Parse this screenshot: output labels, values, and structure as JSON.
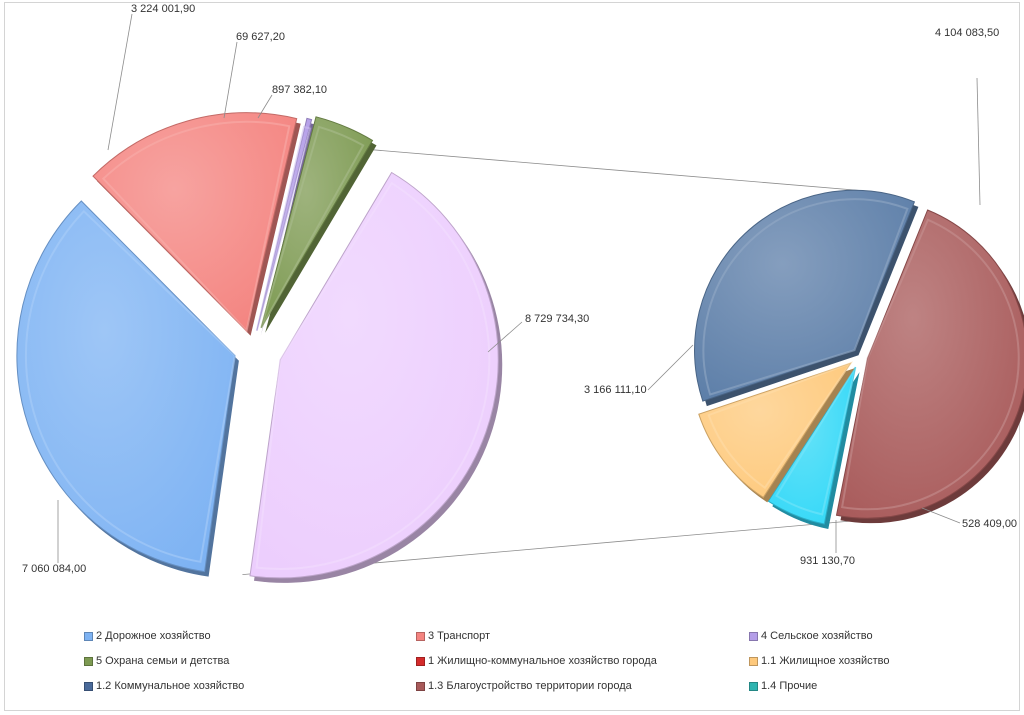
{
  "chart_data": {
    "type": "pie",
    "title": "",
    "main_pie": {
      "slices": [
        {
          "name": "2 Дорожное хозяйство",
          "value": 7060084.0,
          "label": "7 060 084,00",
          "color": "#7eb3f3"
        },
        {
          "name": "3 Транспорт",
          "value": 3224001.9,
          "label": "3 224 001,90",
          "color": "#f48480"
        },
        {
          "name": "4 Сельское хозяйство",
          "value": 69627.2,
          "label": "69 627,20",
          "color": "#b49ee8"
        },
        {
          "name": "5 Охрана семьи и детства",
          "value": 897382.1,
          "label": "897 382,10",
          "color": "#7d9a52"
        },
        {
          "name": "1 Жилищно-коммунальное  хозяйство города",
          "value": 8729734.3,
          "label": "8 729 734,30",
          "color": "#eccdfd"
        }
      ]
    },
    "secondary_pie": {
      "source": "1 Жилищно-коммунальное  хозяйство города",
      "slices": [
        {
          "name": "1.3 Благоустройство территории города",
          "value": 4104083.5,
          "label": "4 104 083,50",
          "color": "#a85a5a"
        },
        {
          "name": "1.4 Прочие",
          "value": 528409.0,
          "label": "528 409,00",
          "color": "#33d8f7"
        },
        {
          "name": "1.1 Жилищное хозяйство",
          "value": 931130.7,
          "label": "931 130,70",
          "color": "#fec97c"
        },
        {
          "name": "1.2 Коммунальное хозяйство",
          "value": 3166111.1,
          "label": "3 166 111,10",
          "color": "#5c7ea8"
        }
      ]
    },
    "legend": {
      "position": "bottom",
      "items": [
        {
          "label": "2 Дорожное хозяйство",
          "color": "#7eb3f3"
        },
        {
          "label": "3 Транспорт",
          "color": "#f48480"
        },
        {
          "label": "4 Сельское хозяйство",
          "color": "#b49ee8"
        },
        {
          "label": "5 Охрана семьи и детства",
          "color": "#7d9a52"
        },
        {
          "label": "1 Жилищно-коммунальное  хозяйство города",
          "color": "#d42b2b"
        },
        {
          "label": "1.1 Жилищное хозяйство",
          "color": "#fec97c"
        },
        {
          "label": "1.2 Коммунальное хозяйство",
          "color": "#4a6a9a"
        },
        {
          "label": "1.3 Благоустройство территории города",
          "color": "#a85a5a"
        },
        {
          "label": "1.4 Прочие",
          "color": "#2fb4b0"
        }
      ]
    }
  }
}
